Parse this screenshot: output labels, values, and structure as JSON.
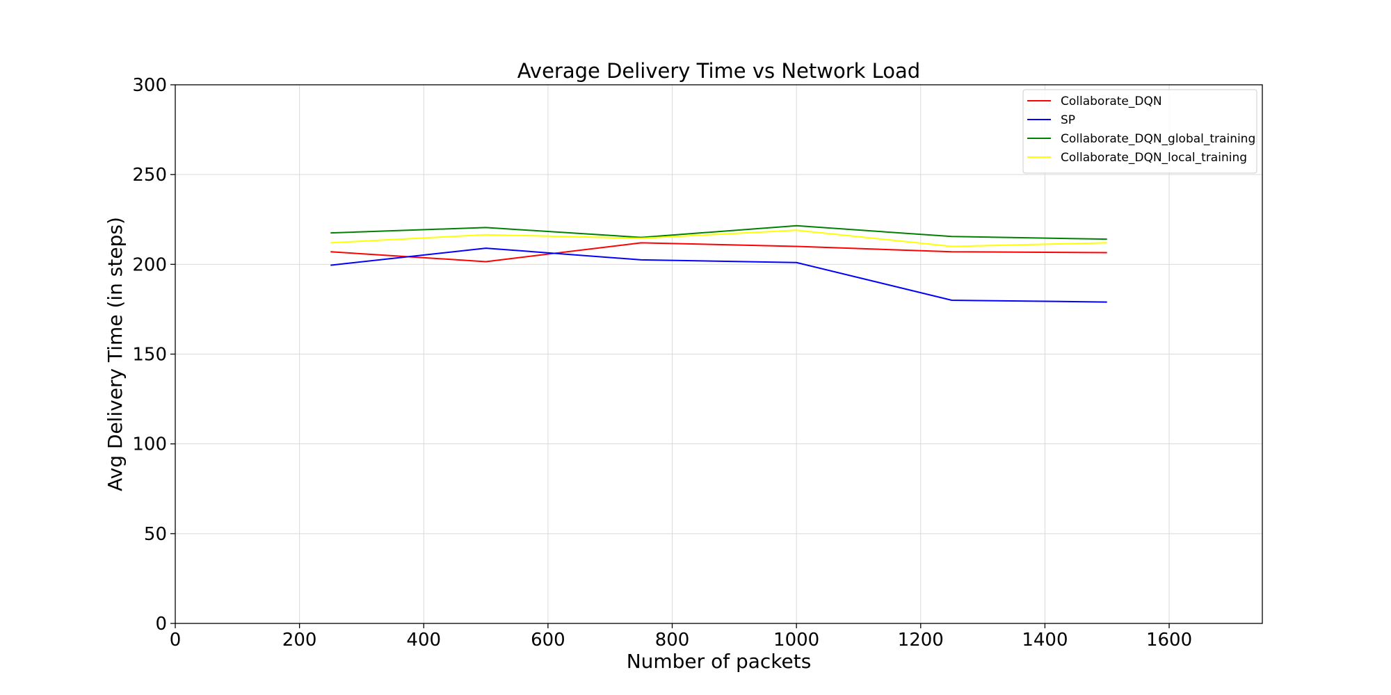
{
  "chart_data": {
    "type": "line",
    "title": "Average Delivery Time vs Network Load",
    "xlabel": "Number of packets",
    "ylabel": "Avg Delivery Time (in steps)",
    "xlim": [
      0,
      1750
    ],
    "ylim": [
      0,
      300
    ],
    "xticks": [
      0,
      200,
      400,
      600,
      800,
      1000,
      1200,
      1400,
      1600
    ],
    "yticks": [
      0,
      50,
      100,
      150,
      200,
      250,
      300
    ],
    "grid": true,
    "legend_position": "top-right",
    "x": [
      250,
      500,
      750,
      1000,
      1250,
      1500
    ],
    "series": [
      {
        "name": "Collaborate_DQN",
        "color": "#ff0000",
        "values": [
          207,
          201.5,
          212,
          210,
          207,
          206.5
        ]
      },
      {
        "name": "SP",
        "color": "#0000ff",
        "values": [
          199.5,
          209,
          202.5,
          201,
          180,
          179
        ]
      },
      {
        "name": "Collaborate_DQN_global_training",
        "color": "#008000",
        "values": [
          217.5,
          220.5,
          215,
          221.5,
          215.5,
          214
        ]
      },
      {
        "name": "Collaborate_DQN_local_training",
        "color": "#ffff00",
        "values": [
          212,
          216.5,
          214.5,
          219,
          210,
          212
        ]
      }
    ]
  }
}
